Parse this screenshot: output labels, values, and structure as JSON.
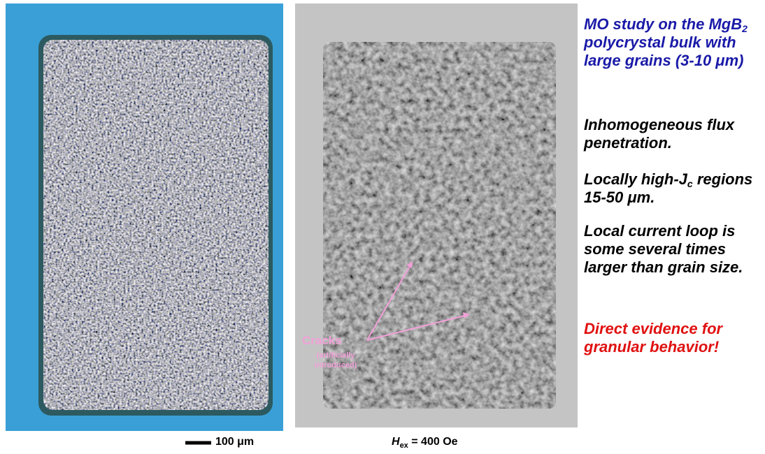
{
  "heading": {
    "before": "MO study on the MgB",
    "subscript": "2",
    "after": " polycrystal bulk with large grains (3-10 μm)"
  },
  "points": [
    {
      "text": "Inhomogeneous flux penetration."
    },
    {
      "before": "Locally high-J",
      "subscript": "c",
      "after": " regions 15-50 μm."
    },
    {
      "text": "Local current loop is some several times larger than grain size."
    }
  ],
  "conclusion": "Direct evidence for granular behavior!",
  "annotation": {
    "label": "Cracks",
    "note": "(artificially introduced)"
  },
  "scale_bar": "100 μm",
  "field_label": {
    "symbol": "H",
    "subscript": "ex",
    "after": " = 400 Oe"
  }
}
